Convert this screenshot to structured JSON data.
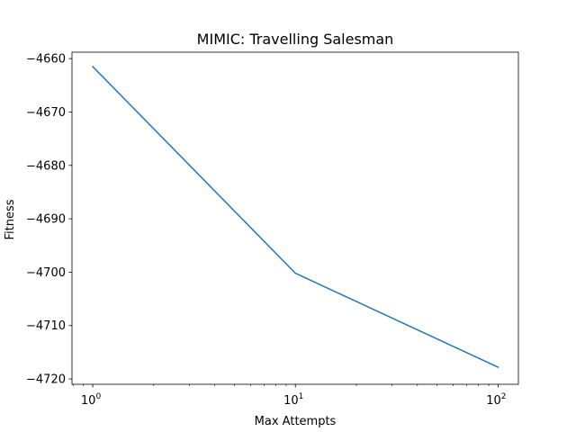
{
  "chart_data": {
    "type": "line",
    "title": "MIMIC: Travelling Salesman",
    "xlabel": "Max Attempts",
    "ylabel": "Fitness",
    "xscale": "log",
    "xlim": [
      0.79,
      126
    ],
    "ylim": [
      -4721.0,
      -4658.8
    ],
    "x_ticks": [
      {
        "value": 1,
        "base": "10",
        "exp": "0"
      },
      {
        "value": 10,
        "base": "10",
        "exp": "1"
      },
      {
        "value": 100,
        "base": "10",
        "exp": "2"
      }
    ],
    "y_ticks": [
      {
        "value": -4660,
        "label": "−4660"
      },
      {
        "value": -4670,
        "label": "−4670"
      },
      {
        "value": -4680,
        "label": "−4680"
      },
      {
        "value": -4690,
        "label": "−4690"
      },
      {
        "value": -4700,
        "label": "−4700"
      },
      {
        "value": -4710,
        "label": "−4710"
      },
      {
        "value": -4720,
        "label": "−4720"
      }
    ],
    "series": [
      {
        "color": "#1f77b4",
        "x": [
          1,
          10,
          100
        ],
        "y": [
          -4661.5,
          -4700.2,
          -4717.8
        ]
      }
    ],
    "grid": false,
    "legend": "none"
  }
}
